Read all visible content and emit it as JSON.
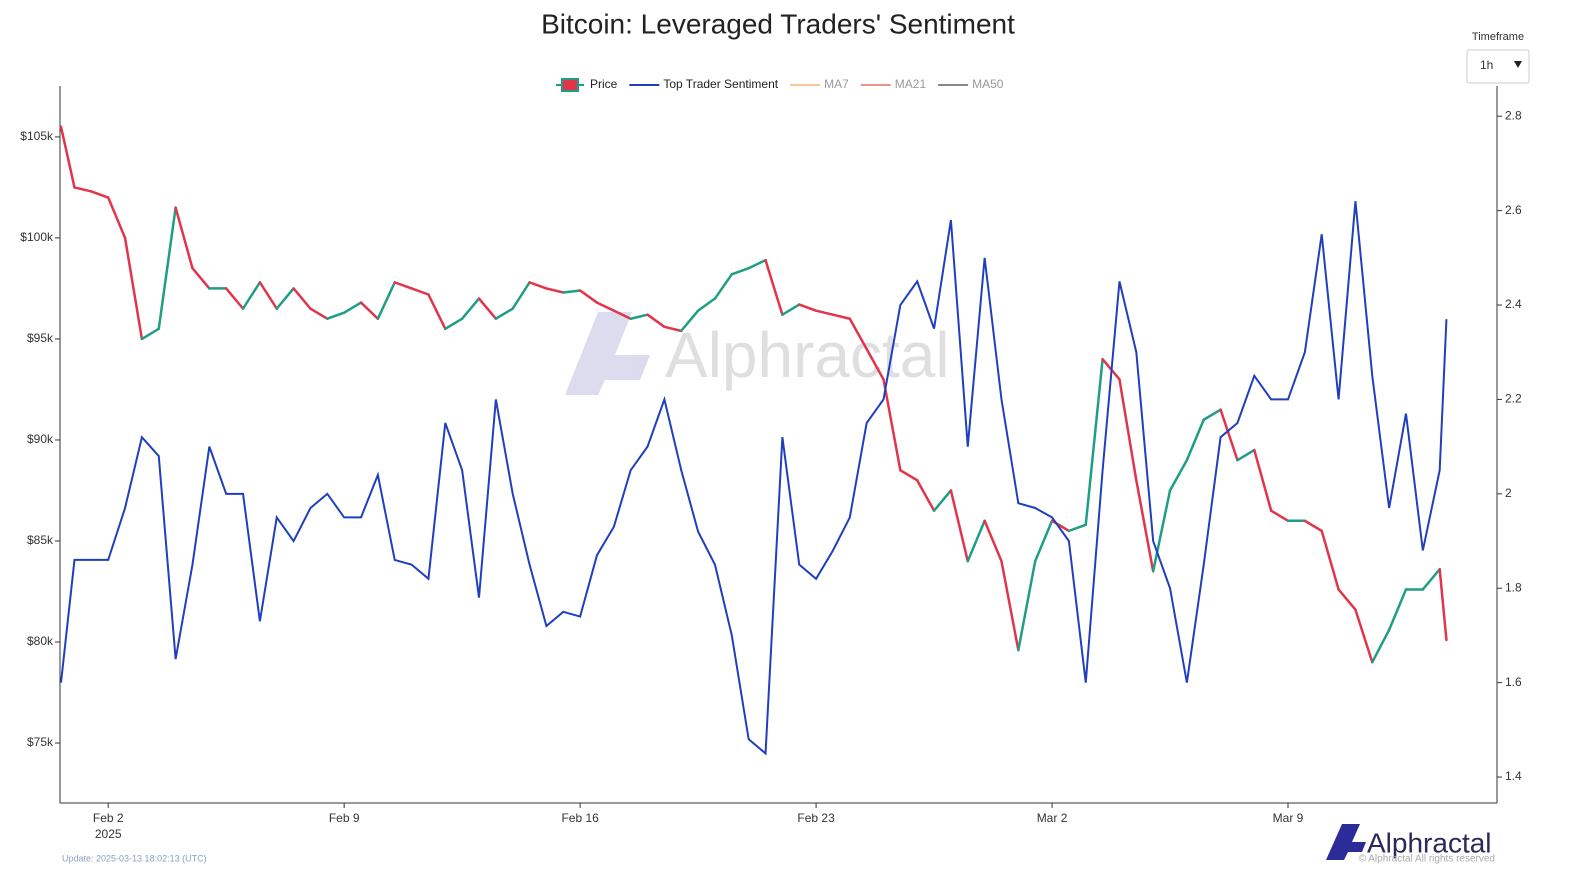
{
  "chart_data": {
    "type": "line",
    "title": "Bitcoin: Leveraged Traders' Sentiment",
    "timeframe_label": "Timeframe",
    "timeframe_value": "1h",
    "update_text": "Update: 2025-03-13 18:02:13 (UTC)",
    "copyright": "© Alphractal All rights reserved",
    "brand": "Alphractal",
    "x": [
      -0.4,
      0,
      0.5,
      1,
      1.5,
      2,
      2.5,
      3,
      3.5,
      4,
      4.5,
      5,
      5.5,
      6,
      6.5,
      7,
      7.5,
      8,
      8.5,
      9,
      9.5,
      10,
      10.5,
      11,
      11.5,
      12,
      12.5,
      13,
      13.5,
      14,
      14.5,
      15,
      15.5,
      16,
      16.5,
      17,
      17.5,
      18,
      18.5,
      19,
      19.5,
      20,
      20.5,
      21,
      21.5,
      22,
      22.5,
      23,
      23.5,
      24,
      24.5,
      25,
      25.5,
      26,
      26.5,
      27,
      27.5,
      28,
      28.5,
      29,
      29.5,
      30,
      30.5,
      31,
      31.5,
      32,
      32.5,
      33,
      33.5,
      34,
      34.5,
      35,
      35.5,
      36,
      36.5,
      37,
      37.5,
      38,
      38.5,
      39,
      39.5,
      40,
      40.5,
      40.7
    ],
    "series": [
      {
        "name": "Price",
        "up_color": "#1f9e84",
        "down_color": "#e0354a",
        "values": [
          105500,
          102500,
          102300,
          102000,
          100000,
          95000,
          95500,
          101500,
          98500,
          97500,
          97500,
          96500,
          97800,
          96500,
          97500,
          96500,
          96000,
          96300,
          96800,
          96000,
          97800,
          97500,
          97200,
          95500,
          96000,
          97000,
          96000,
          96500,
          97800,
          97500,
          97300,
          97400,
          96800,
          96400,
          96000,
          96200,
          95600,
          95400,
          96400,
          97000,
          98200,
          98500,
          98900,
          96200,
          96700,
          96400,
          96200,
          96000,
          94500,
          93000,
          88500,
          88000,
          86500,
          87500,
          84000,
          86000,
          84000,
          79600,
          84000,
          86000,
          85500,
          85800,
          94000,
          93000,
          88000,
          83500,
          87500,
          89000,
          91000,
          91500,
          89000,
          89500,
          86500,
          86000,
          86000,
          85500,
          82600,
          81600,
          79000,
          80600,
          82600,
          82600,
          83600,
          80100
        ]
      },
      {
        "name": "Top Trader Sentiment",
        "color": "#1f3fbf",
        "axis": "y2",
        "values": [
          1.6,
          1.86,
          1.86,
          1.86,
          1.97,
          2.12,
          2.08,
          1.65,
          1.85,
          2.1,
          2.0,
          2.0,
          1.73,
          1.95,
          1.9,
          1.97,
          2.0,
          1.95,
          1.95,
          2.04,
          1.86,
          1.85,
          1.82,
          2.15,
          2.05,
          1.78,
          2.2,
          2.0,
          1.85,
          1.72,
          1.75,
          1.74,
          1.87,
          1.93,
          2.05,
          2.1,
          2.2,
          2.05,
          1.92,
          1.85,
          1.7,
          1.48,
          1.45,
          2.12,
          1.85,
          1.82,
          1.88,
          1.95,
          2.15,
          2.2,
          2.4,
          2.45,
          2.35,
          2.58,
          2.1,
          2.5,
          2.2,
          1.98,
          1.97,
          1.95,
          1.9,
          1.6,
          2.05,
          2.45,
          2.3,
          1.9,
          1.8,
          1.6,
          1.85,
          2.12,
          2.15,
          2.25,
          2.2,
          2.2,
          2.3,
          2.55,
          2.2,
          2.62,
          2.25,
          1.97,
          2.17,
          1.88,
          2.05,
          2.37
        ]
      }
    ],
    "inactive_legend": [
      {
        "name": "MA7",
        "color": "#f5c896"
      },
      {
        "name": "MA21",
        "color": "#e89a8a"
      },
      {
        "name": "MA50",
        "color": "#888888"
      }
    ],
    "xlim": [
      -0.43,
      42.2
    ],
    "xticks": [
      {
        "value": 1,
        "label": "Feb 2"
      },
      {
        "value": 8,
        "label": "Feb 9"
      },
      {
        "value": 15,
        "label": "Feb 16"
      },
      {
        "value": 22,
        "label": "Feb 23"
      },
      {
        "value": 29,
        "label": "Mar 2"
      },
      {
        "value": 36,
        "label": "Mar 9"
      }
    ],
    "x_year_label": "2025",
    "ylim": [
      72030,
      107520
    ],
    "yticks": [
      {
        "value": 75000,
        "label": "$75k"
      },
      {
        "value": 80000,
        "label": "$80k"
      },
      {
        "value": 85000,
        "label": "$85k"
      },
      {
        "value": 90000,
        "label": "$90k"
      },
      {
        "value": 95000,
        "label": "$95k"
      },
      {
        "value": 100000,
        "label": "$100k"
      },
      {
        "value": 105000,
        "label": "$105k"
      }
    ],
    "y2lim": [
      1.345,
      2.864
    ],
    "y2ticks": [
      1.4,
      1.6,
      1.8,
      2,
      2.2,
      2.4,
      2.6,
      2.8
    ]
  }
}
